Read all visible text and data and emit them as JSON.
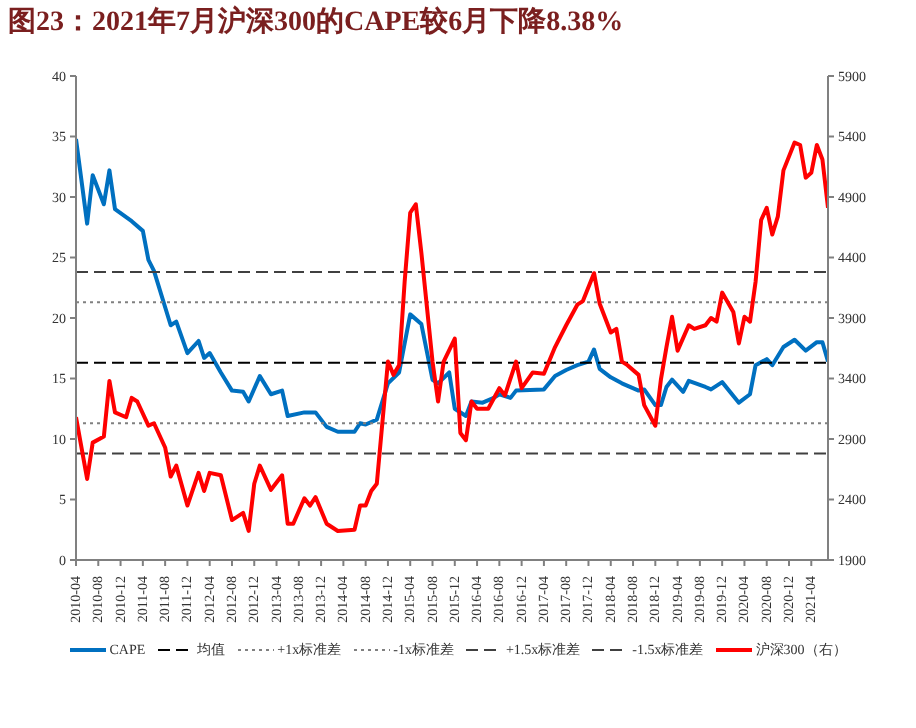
{
  "chart_data": {
    "type": "line",
    "title": "图23：2021年7月沪深300的CAPE较6月下降8.38%",
    "xlim": [
      "2010-04",
      "2021-07"
    ],
    "xticks": [
      "2010-04",
      "2010-08",
      "2010-12",
      "2011-04",
      "2011-08",
      "2011-12",
      "2012-04",
      "2012-08",
      "2012-12",
      "2013-04",
      "2013-08",
      "2013-12",
      "2014-04",
      "2014-08",
      "2014-12",
      "2015-04",
      "2015-08",
      "2015-12",
      "2016-04",
      "2016-08",
      "2016-12",
      "2017-04",
      "2017-08",
      "2017-12",
      "2018-04",
      "2018-08",
      "2018-12",
      "2019-04",
      "2019-08",
      "2019-12",
      "2020-04",
      "2020-08",
      "2020-12",
      "2021-04"
    ],
    "ylim": [
      0,
      40
    ],
    "yticks": [
      0,
      5,
      10,
      15,
      20,
      25,
      30,
      35,
      40
    ],
    "y2lim": [
      1900,
      5900
    ],
    "y2ticks": [
      1900,
      2400,
      2900,
      3400,
      3900,
      4400,
      4900,
      5400,
      5900
    ],
    "legend": "bottom",
    "marker": "none",
    "series": [
      {
        "name": "CAPE",
        "color": "#0070c0",
        "line_style": "solid",
        "x": [
          "2010-04",
          "2010-06",
          "2010-07",
          "2010-09",
          "2010-10",
          "2010-11",
          "2011-02",
          "2011-04",
          "2011-05",
          "2011-06",
          "2011-09",
          "2011-10",
          "2011-12",
          "2012-02",
          "2012-03",
          "2012-04",
          "2012-06",
          "2012-08",
          "2012-10",
          "2012-11",
          "2013-01",
          "2013-03",
          "2013-05",
          "2013-06",
          "2013-09",
          "2013-11",
          "2014-01",
          "2014-03",
          "2014-06",
          "2014-07",
          "2014-08",
          "2014-10",
          "2014-12",
          "2015-02",
          "2015-04",
          "2015-06",
          "2015-08",
          "2015-09",
          "2015-11",
          "2015-12",
          "2016-02",
          "2016-03",
          "2016-05",
          "2016-07",
          "2016-08",
          "2016-10",
          "2016-11",
          "2017-04",
          "2017-06",
          "2017-08",
          "2017-10",
          "2017-12",
          "2018-01",
          "2018-02",
          "2018-04",
          "2018-06",
          "2018-09",
          "2018-10",
          "2018-12",
          "2019-01",
          "2019-02",
          "2019-03",
          "2019-05",
          "2019-06",
          "2019-09",
          "2019-10",
          "2019-12",
          "2020-03",
          "2020-05",
          "2020-06",
          "2020-08",
          "2020-09",
          "2020-11",
          "2021-01",
          "2021-03",
          "2021-05",
          "2021-06",
          "2021-07"
        ],
        "values": [
          34.8,
          27.8,
          31.8,
          29.4,
          32.2,
          29.0,
          28.0,
          27.2,
          24.8,
          23.9,
          19.4,
          19.7,
          17.1,
          18.1,
          16.7,
          17.1,
          15.5,
          14.0,
          13.9,
          13.1,
          15.2,
          13.7,
          14.0,
          11.9,
          12.2,
          12.2,
          11.0,
          10.6,
          10.6,
          11.3,
          11.2,
          11.6,
          14.6,
          15.5,
          20.3,
          19.5,
          14.9,
          14.6,
          15.5,
          12.5,
          11.9,
          13.1,
          13.0,
          13.4,
          13.7,
          13.4,
          14.0,
          14.1,
          15.2,
          15.7,
          16.1,
          16.4,
          17.4,
          15.8,
          15.1,
          14.6,
          14.0,
          14.1,
          12.8,
          12.8,
          14.3,
          14.9,
          13.9,
          14.8,
          14.3,
          14.1,
          14.7,
          13.0,
          13.7,
          16.1,
          16.6,
          16.1,
          17.6,
          18.2,
          17.3,
          18.0,
          18.0,
          16.4
        ]
      },
      {
        "name": "均值",
        "color": "#000000",
        "line_style": "dashed",
        "x": [
          "2010-04",
          "2021-07"
        ],
        "values": [
          16.3,
          16.3
        ]
      },
      {
        "name": "+1x标准差",
        "color": "#808080",
        "line_style": "dotted",
        "x": [
          "2010-04",
          "2021-07"
        ],
        "values": [
          21.3,
          21.3
        ]
      },
      {
        "name": "-1x标准差",
        "color": "#808080",
        "line_style": "dotted",
        "x": [
          "2010-04",
          "2021-07"
        ],
        "values": [
          11.3,
          11.3
        ]
      },
      {
        "name": "+1.5x标准差",
        "color": "#404040",
        "line_style": "dashed",
        "x": [
          "2010-04",
          "2021-07"
        ],
        "values": [
          23.8,
          23.8
        ]
      },
      {
        "name": "-1.5x标准差",
        "color": "#404040",
        "line_style": "dashed",
        "x": [
          "2010-04",
          "2021-07"
        ],
        "values": [
          8.8,
          8.8
        ]
      },
      {
        "name": "沪深300（右）",
        "color": "#ff0000",
        "line_style": "solid",
        "axis": "y2",
        "x": [
          "2010-04",
          "2010-06",
          "2010-07",
          "2010-09",
          "2010-10",
          "2010-11",
          "2011-01",
          "2011-02",
          "2011-03",
          "2011-05",
          "2011-06",
          "2011-08",
          "2011-09",
          "2011-10",
          "2011-12",
          "2012-02",
          "2012-03",
          "2012-04",
          "2012-06",
          "2012-08",
          "2012-10",
          "2012-11",
          "2012-12",
          "2013-01",
          "2013-03",
          "2013-05",
          "2013-06",
          "2013-07",
          "2013-09",
          "2013-10",
          "2013-11",
          "2014-01",
          "2014-03",
          "2014-06",
          "2014-07",
          "2014-08",
          "2014-09",
          "2014-10",
          "2014-12",
          "2015-01",
          "2015-02",
          "2015-03",
          "2015-04",
          "2015-05",
          "2015-06",
          "2015-08",
          "2015-09",
          "2015-10",
          "2015-12",
          "2016-01",
          "2016-02",
          "2016-03",
          "2016-04",
          "2016-06",
          "2016-08",
          "2016-09",
          "2016-11",
          "2016-12",
          "2017-02",
          "2017-04",
          "2017-06",
          "2017-08",
          "2017-10",
          "2017-11",
          "2018-01",
          "2018-02",
          "2018-04",
          "2018-05",
          "2018-06",
          "2018-07",
          "2018-09",
          "2018-10",
          "2018-12",
          "2019-01",
          "2019-02",
          "2019-03",
          "2019-04",
          "2019-06",
          "2019-07",
          "2019-09",
          "2019-10",
          "2019-11",
          "2019-12",
          "2020-02",
          "2020-03",
          "2020-04",
          "2020-05",
          "2020-06",
          "2020-07",
          "2020-08",
          "2020-09",
          "2020-10",
          "2020-11",
          "2021-01",
          "2021-02",
          "2021-03",
          "2021-04",
          "2021-05",
          "2021-06",
          "2021-07"
        ],
        "values": [
          3080,
          2570,
          2870,
          2920,
          3380,
          3120,
          3080,
          3240,
          3210,
          3010,
          3030,
          2830,
          2590,
          2680,
          2350,
          2620,
          2470,
          2620,
          2600,
          2230,
          2290,
          2140,
          2530,
          2680,
          2480,
          2600,
          2200,
          2200,
          2410,
          2350,
          2420,
          2200,
          2140,
          2150,
          2350,
          2350,
          2470,
          2530,
          3540,
          3430,
          3510,
          4200,
          4770,
          4840,
          4440,
          3540,
          3210,
          3540,
          3730,
          2950,
          2890,
          3210,
          3150,
          3150,
          3320,
          3260,
          3540,
          3320,
          3450,
          3440,
          3660,
          3840,
          4010,
          4040,
          4270,
          4020,
          3780,
          3810,
          3540,
          3510,
          3430,
          3180,
          3010,
          3390,
          3660,
          3910,
          3630,
          3840,
          3810,
          3840,
          3900,
          3870,
          4110,
          3950,
          3690,
          3910,
          3870,
          4200,
          4710,
          4810,
          4590,
          4740,
          5120,
          5350,
          5330,
          5060,
          5100,
          5330,
          5210,
          4810
        ]
      }
    ]
  }
}
